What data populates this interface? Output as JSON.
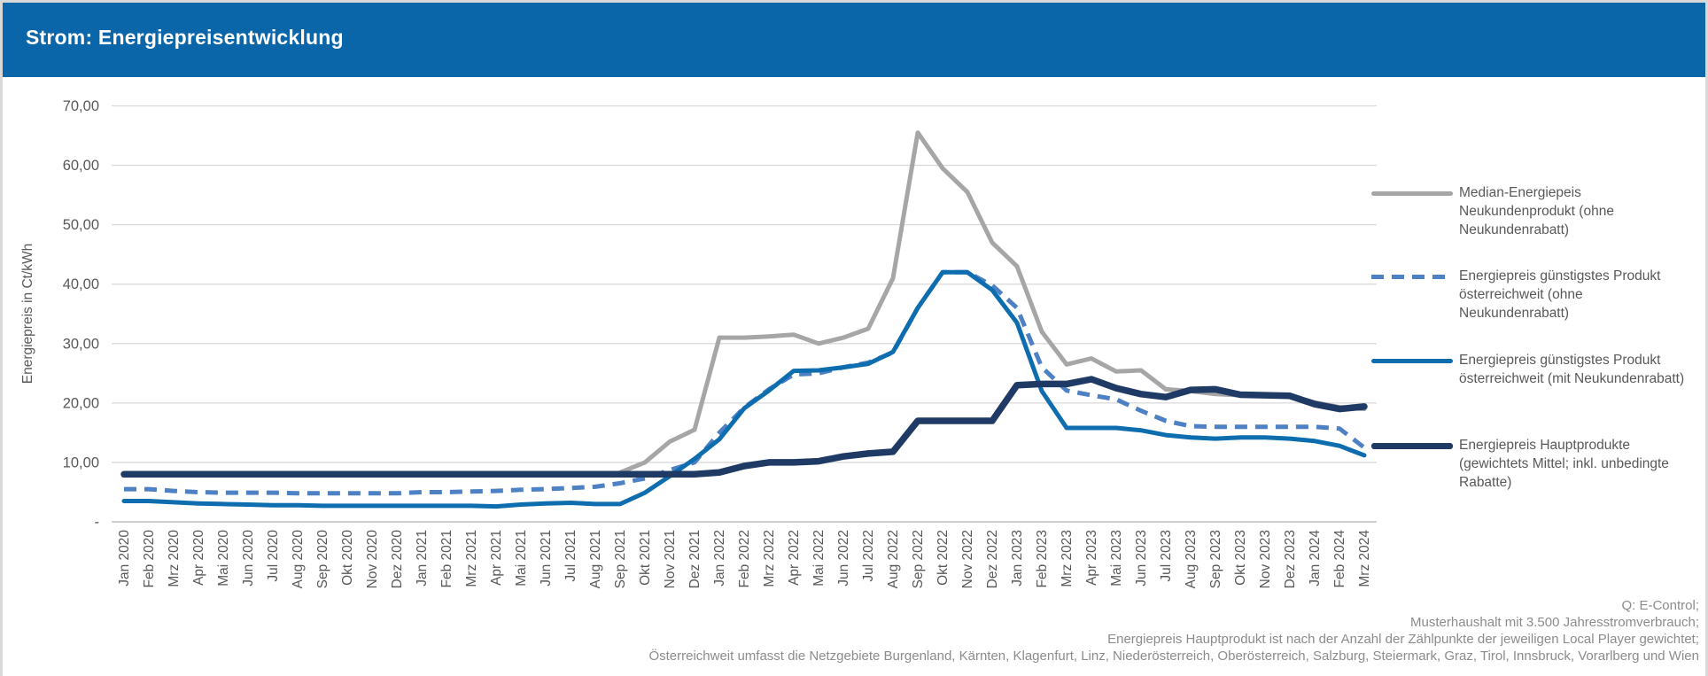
{
  "header": {
    "title": "Strom: Energiepreisentwicklung",
    "background_color": "#0B65A9"
  },
  "chart_data": {
    "type": "line",
    "ylabel": "Energiepreis in Ct/kWh",
    "ylim": [
      0,
      70
    ],
    "ytick_step": 10,
    "ytick_labels": [
      "-",
      "10,00",
      "20,00",
      "30,00",
      "40,00",
      "50,00",
      "60,00",
      "70,00"
    ],
    "grid": true,
    "legend_position": "right",
    "categories": [
      "Jan 2020",
      "Feb 2020",
      "Mrz 2020",
      "Apr 2020",
      "Mai 2020",
      "Jun 2020",
      "Jul 2020",
      "Aug 2020",
      "Sep 2020",
      "Okt 2020",
      "Nov 2020",
      "Dez 2020",
      "Jan 2021",
      "Feb 2021",
      "Mrz 2021",
      "Apr 2021",
      "Mai 2021",
      "Jun 2021",
      "Jul 2021",
      "Aug 2021",
      "Sep 2021",
      "Okt 2021",
      "Nov 2021",
      "Dez 2021",
      "Jan 2022",
      "Feb 2022",
      "Mrz 2022",
      "Apr 2022",
      "Mai 2022",
      "Jun 2022",
      "Jul 2022",
      "Aug 2022",
      "Sep 2022",
      "Okt 2022",
      "Nov 2022",
      "Dez 2022",
      "Jan 2023",
      "Feb 2023",
      "Mrz 2023",
      "Apr 2023",
      "Mai 2023",
      "Jun 2023",
      "Jul 2023",
      "Aug 2023",
      "Sep 2023",
      "Okt 2023",
      "Nov 2023",
      "Dez 2023",
      "Jan 2024",
      "Feb 2024",
      "Mrz 2024"
    ],
    "series": [
      {
        "name": "Median-Energiepeis Neukundenprodukt (ohne Neukundenrabatt)",
        "color": "#A6A6A6",
        "style": "solid",
        "width": 5,
        "values": [
          null,
          null,
          null,
          null,
          null,
          null,
          null,
          null,
          null,
          null,
          null,
          null,
          null,
          null,
          null,
          null,
          null,
          null,
          null,
          null,
          8.3,
          10.0,
          13.5,
          15.5,
          31.0,
          31.0,
          31.2,
          31.5,
          30.0,
          31.0,
          32.5,
          41.0,
          65.5,
          59.5,
          55.5,
          47.0,
          43.0,
          32.0,
          26.5,
          27.5,
          25.3,
          25.5,
          22.3,
          22.0,
          21.5,
          21.3,
          21.3,
          21.2,
          20.1,
          19.3,
          19.0
        ]
      },
      {
        "name": "Energiepreis günstigstes Produkt österreichweit (ohne Neukundenrabatt)",
        "color": "#4E81C4",
        "style": "dashed",
        "width": 5,
        "values": [
          5.5,
          5.5,
          5.2,
          5.0,
          4.9,
          4.9,
          4.9,
          4.8,
          4.8,
          4.8,
          4.8,
          4.8,
          5.0,
          5.0,
          5.1,
          5.2,
          5.4,
          5.5,
          5.7,
          5.9,
          6.5,
          7.3,
          8.7,
          10.0,
          15.0,
          19.2,
          22.3,
          24.8,
          25.0,
          26.0,
          26.8,
          28.5,
          36.0,
          42.0,
          42.0,
          39.8,
          36.0,
          26.0,
          22.1,
          21.3,
          20.6,
          18.7,
          17.0,
          16.1,
          16.0,
          16.0,
          16.0,
          16.0,
          16.0,
          15.7,
          12.5
        ]
      },
      {
        "name": "Energiepreis günstigstes Produkt österreichweit (mit Neukundenrabatt)",
        "color": "#0E6DAE",
        "style": "solid",
        "width": 5,
        "values": [
          3.5,
          3.5,
          3.3,
          3.1,
          3.0,
          2.9,
          2.8,
          2.8,
          2.7,
          2.7,
          2.7,
          2.7,
          2.7,
          2.7,
          2.7,
          2.6,
          2.9,
          3.1,
          3.2,
          3.0,
          3.0,
          4.9,
          7.7,
          10.6,
          13.9,
          19.1,
          22.1,
          25.4,
          25.5,
          26.0,
          26.6,
          28.6,
          36.0,
          42.0,
          42.0,
          39.0,
          33.5,
          22.0,
          15.8,
          15.8,
          15.8,
          15.4,
          14.6,
          14.2,
          14.0,
          14.2,
          14.2,
          14.0,
          13.6,
          12.8,
          11.2
        ]
      },
      {
        "name": "Energiepreis Hauptprodukte (gewichtets Mittel; inkl. unbedingte Rabatte)",
        "color": "#1F3A64",
        "style": "solid",
        "width": 7.5,
        "values": [
          8.0,
          8.0,
          8.0,
          8.0,
          8.0,
          8.0,
          8.0,
          8.0,
          8.0,
          8.0,
          8.0,
          8.0,
          8.0,
          8.0,
          8.0,
          8.0,
          8.0,
          8.0,
          8.0,
          8.0,
          8.0,
          8.0,
          8.0,
          8.0,
          8.3,
          9.4,
          10.0,
          10.0,
          10.2,
          11.0,
          11.5,
          11.8,
          17.0,
          17.0,
          17.0,
          17.0,
          23.0,
          23.2,
          23.2,
          24.0,
          22.5,
          21.5,
          21.0,
          22.2,
          22.3,
          21.4,
          21.3,
          21.2,
          19.8,
          19.0,
          19.4
        ]
      }
    ]
  },
  "legend": {
    "items": [
      {
        "lines": [
          "Median-Energiepeis",
          "Neukundenprodukt (ohne",
          "Neukundenrabatt)"
        ]
      },
      {
        "lines": [
          "Energiepreis günstigstes Produkt",
          "österreichweit (ohne",
          "Neukundenrabatt)"
        ]
      },
      {
        "lines": [
          "Energiepreis günstigstes Produkt",
          "österreichweit (mit Neukundenrabatt)"
        ]
      },
      {
        "lines": [
          "Energiepreis Hauptprodukte",
          "(gewichtets Mittel; inkl. unbedingte",
          "Rabatte)"
        ]
      }
    ]
  },
  "footer": {
    "lines": [
      "Q: E-Control;",
      "Musterhaushalt  mit 3.500 Jahresstromverbrauch;",
      "Energiepreis Hauptprodukt  ist nach der Anzahl der Zählpunkte  der jeweiligen  Local Player gewichtet;",
      "Österreichweit umfasst die Netzgebiete  Burgenland, Kärnten, Klagenfurt, Linz, Niederösterreich, Oberösterreich, Salzburg, Steiermark, Graz, Tirol, Innsbruck, Vorarlberg und Wien"
    ]
  }
}
